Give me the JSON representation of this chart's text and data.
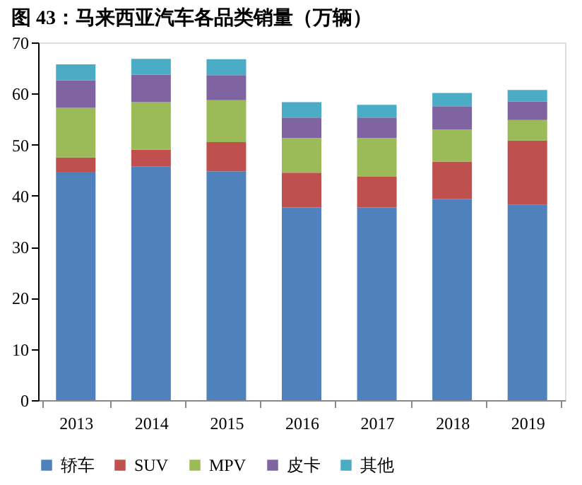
{
  "chart_data": {
    "type": "bar",
    "title": "图 43：马来西亚汽车各品类销量（万辆）",
    "stacked": true,
    "categories": [
      "2013",
      "2014",
      "2015",
      "2016",
      "2017",
      "2018",
      "2019"
    ],
    "series": [
      {
        "name": "轿车",
        "color": "#4f81bd",
        "values": [
          44.7,
          45.7,
          44.8,
          37.7,
          37.7,
          39.4,
          38.2
        ]
      },
      {
        "name": "SUV",
        "color": "#c0504d",
        "values": [
          2.8,
          3.3,
          5.7,
          6.8,
          6.0,
          7.3,
          12.6
        ]
      },
      {
        "name": "MPV",
        "color": "#9bbb59",
        "values": [
          9.7,
          9.3,
          8.2,
          6.8,
          7.6,
          6.3,
          4.0
        ]
      },
      {
        "name": "皮卡",
        "color": "#8064a2",
        "values": [
          5.4,
          5.4,
          4.9,
          4.0,
          4.0,
          4.5,
          3.6
        ]
      },
      {
        "name": "其他",
        "color": "#4bacc6",
        "values": [
          3.1,
          3.1,
          3.1,
          3.0,
          2.5,
          2.6,
          2.3
        ]
      }
    ],
    "ylim": [
      0,
      70
    ],
    "yticks": [
      0,
      10,
      20,
      30,
      40,
      50,
      60,
      70
    ],
    "grid": false,
    "legend": "bottom"
  }
}
